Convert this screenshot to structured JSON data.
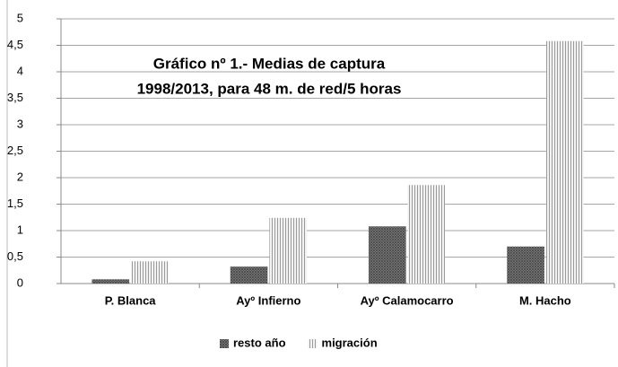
{
  "chart_data": {
    "type": "bar",
    "title": [
      "Gráfico nº 1.- Medias de captura",
      "1998/2013, para 48 m. de red/5 horas"
    ],
    "categories": [
      "P. Blanca",
      "Ayº Infierno",
      "Ayº Calamocarro",
      "M. Hacho"
    ],
    "series": [
      {
        "name": "resto año",
        "color": "#4a4a4a",
        "values": [
          0.08,
          0.32,
          1.08,
          0.7
        ]
      },
      {
        "name": "migración",
        "color": "#9a9a9a",
        "values": [
          0.42,
          1.24,
          1.86,
          4.58
        ]
      }
    ],
    "ylim": [
      0,
      5
    ],
    "yticks": [
      0,
      {
        "value": 0.5,
        "label": "0,5"
      },
      1,
      {
        "value": 1.5,
        "label": "1,5"
      },
      2,
      {
        "value": 2.5,
        "label": "2,5"
      },
      3,
      {
        "value": 3.5,
        "label": "3,5"
      },
      4,
      {
        "value": 4.5,
        "label": "4,5"
      },
      5
    ],
    "grid": true,
    "legend": "bottom"
  }
}
